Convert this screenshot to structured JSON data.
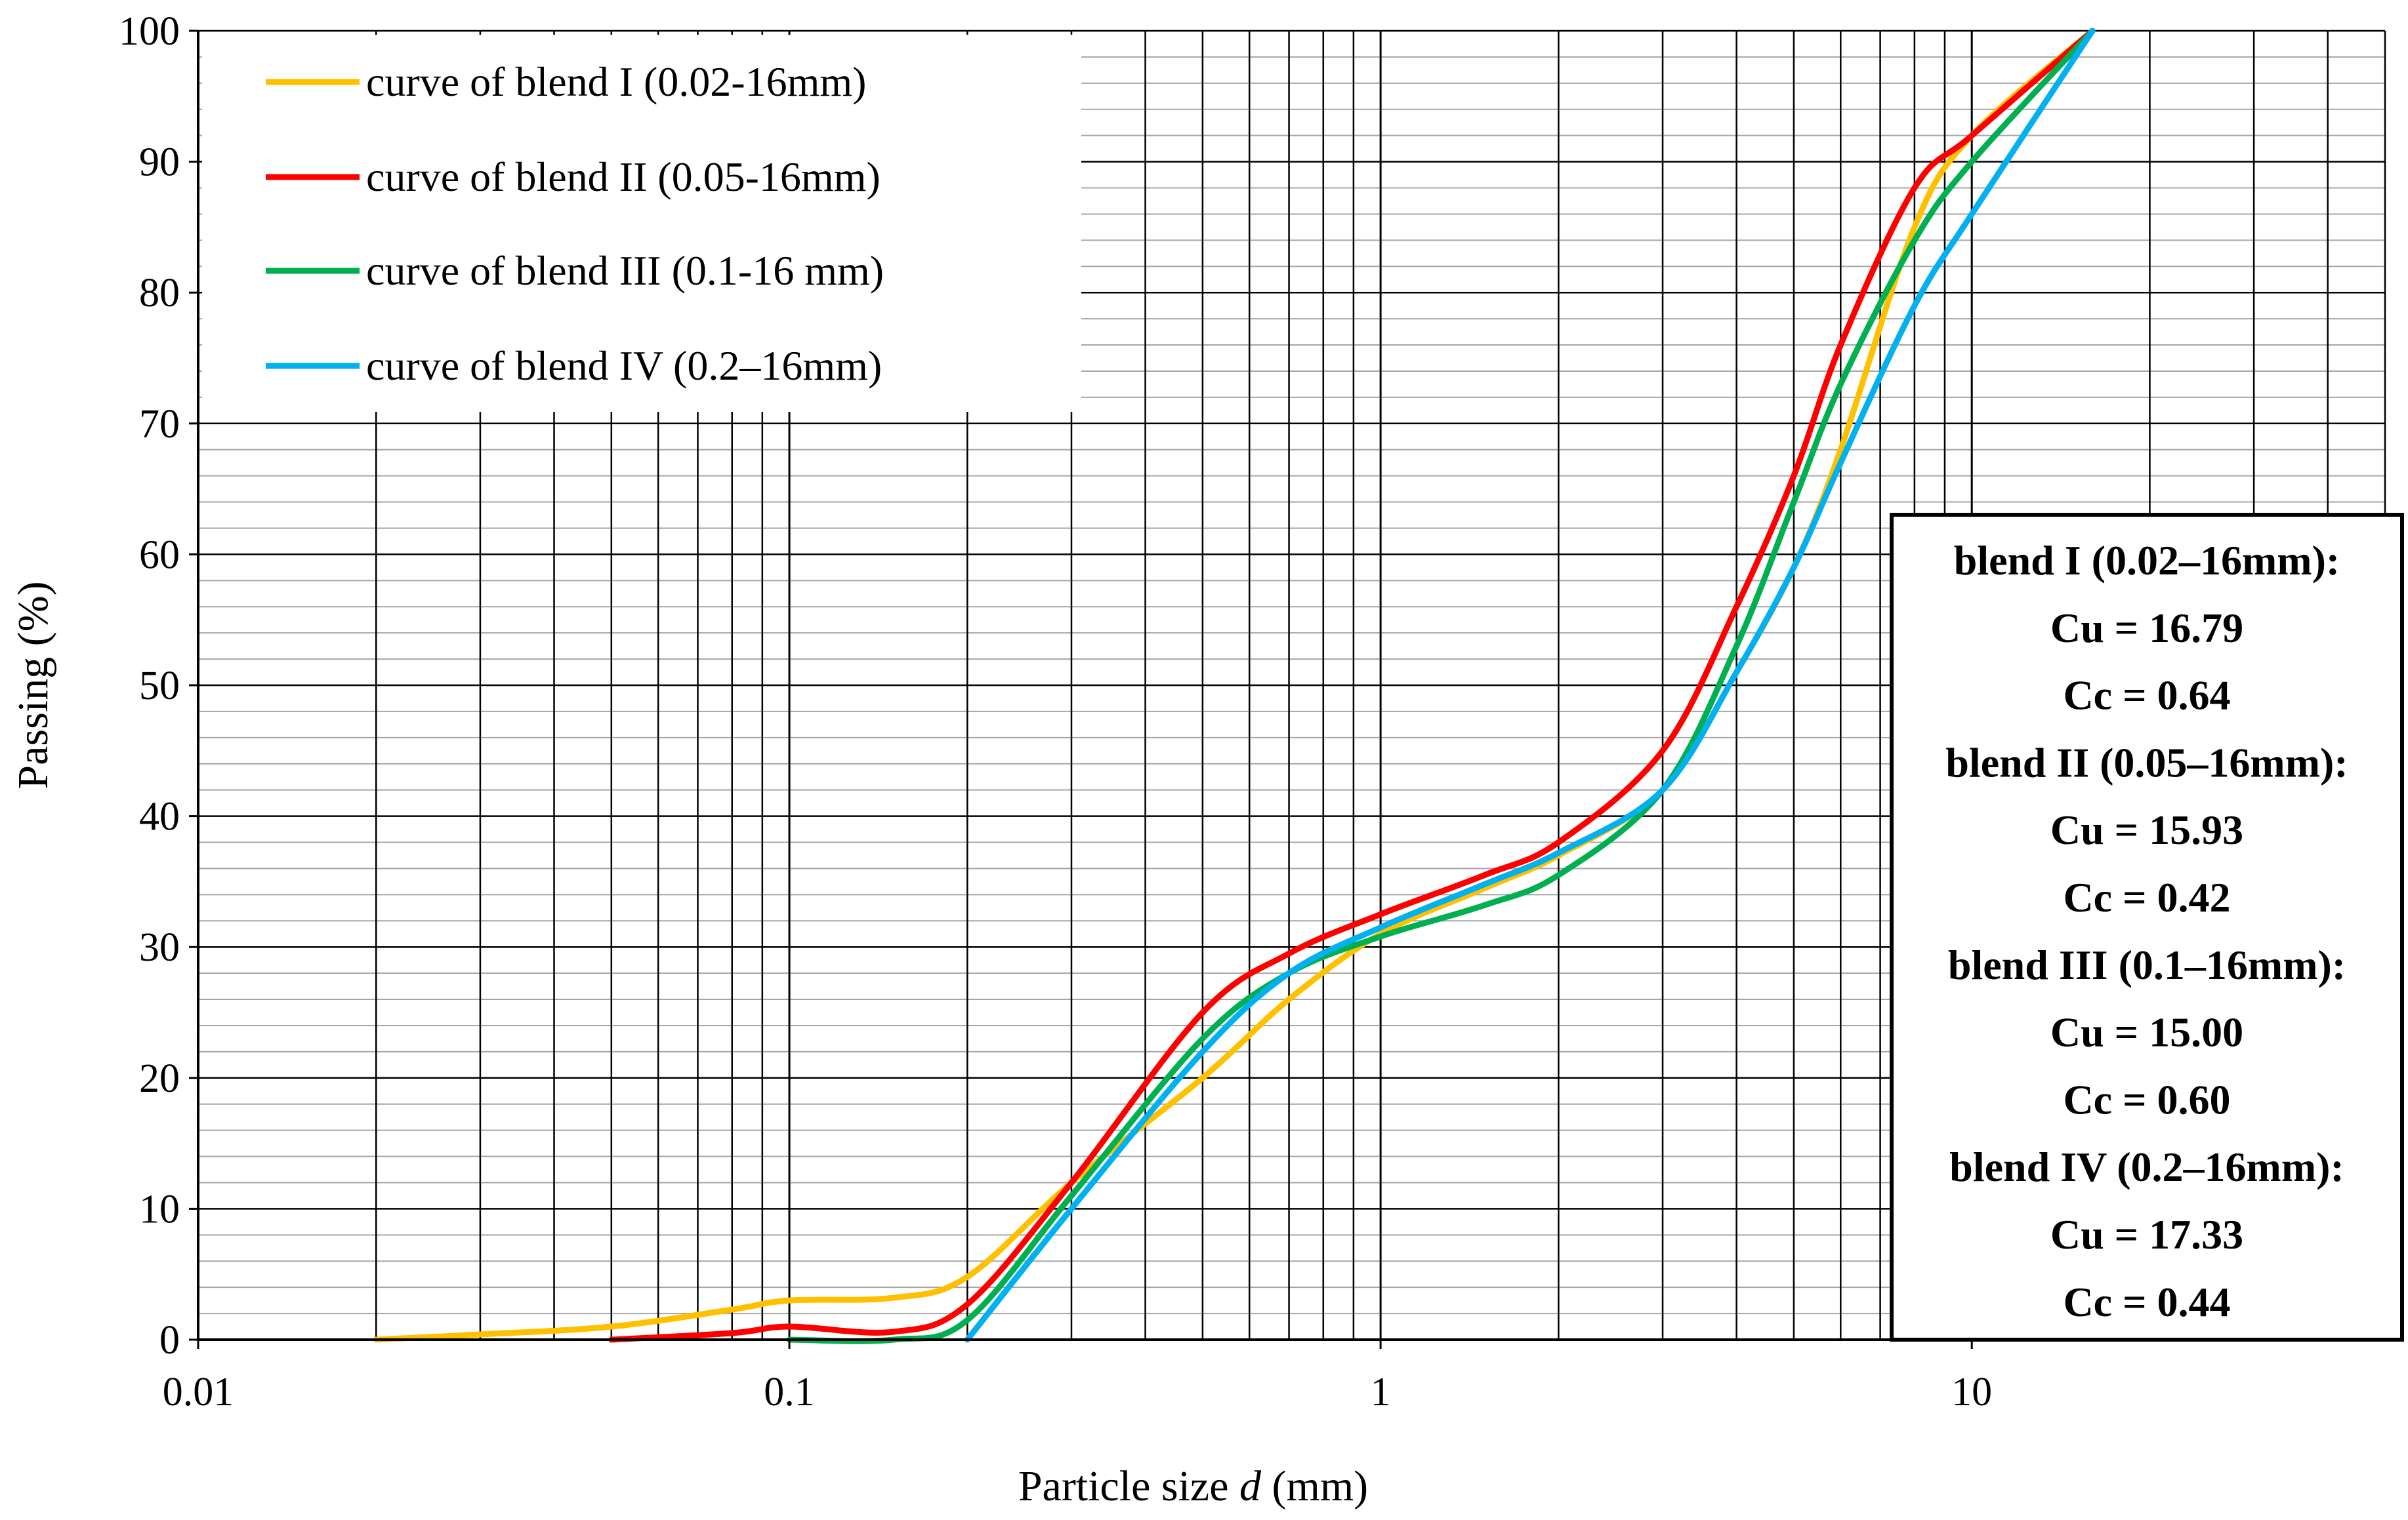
{
  "chart_data": {
    "type": "line",
    "x_scale": "log",
    "xlim": [
      0.01,
      50
    ],
    "ylim": [
      0,
      100
    ],
    "xlabel_prefix": "Particle size ",
    "xlabel_var": "d",
    "xlabel_suffix": " (mm)",
    "ylabel": "Passing (%)",
    "x_ticks": [
      {
        "value": 0.01,
        "label": "0.01"
      },
      {
        "value": 0.1,
        "label": "0.1"
      },
      {
        "value": 1,
        "label": "1"
      },
      {
        "value": 10,
        "label": "10"
      }
    ],
    "y_ticks": [
      {
        "value": 0,
        "label": "0"
      },
      {
        "value": 10,
        "label": "10"
      },
      {
        "value": 20,
        "label": "20"
      },
      {
        "value": 30,
        "label": "30"
      },
      {
        "value": 40,
        "label": "40"
      },
      {
        "value": 50,
        "label": "50"
      },
      {
        "value": 60,
        "label": "60"
      },
      {
        "value": 70,
        "label": "70"
      },
      {
        "value": 80,
        "label": "80"
      },
      {
        "value": 90,
        "label": "90"
      },
      {
        "value": 100,
        "label": "100"
      }
    ],
    "grid": true,
    "legend_position": "top-left",
    "series": [
      {
        "name": "curve of blend I (0.02-16mm)",
        "color": "#FFC000",
        "points": [
          [
            0.02,
            0
          ],
          [
            0.03,
            0.4
          ],
          [
            0.05,
            1.0
          ],
          [
            0.08,
            2.3
          ],
          [
            0.1,
            3.0
          ],
          [
            0.15,
            3.2
          ],
          [
            0.2,
            4.8
          ],
          [
            0.3,
            12
          ],
          [
            0.5,
            20
          ],
          [
            0.7,
            26
          ],
          [
            1,
            31
          ],
          [
            1.5,
            34.5
          ],
          [
            2,
            37
          ],
          [
            3,
            42
          ],
          [
            4,
            51
          ],
          [
            5,
            59
          ],
          [
            6,
            68
          ],
          [
            8,
            85
          ],
          [
            10,
            92
          ],
          [
            16,
            100
          ]
        ]
      },
      {
        "name": "curve of blend II (0.05-16mm)",
        "color": "#FF0000",
        "points": [
          [
            0.05,
            0
          ],
          [
            0.08,
            0.5
          ],
          [
            0.1,
            1.0
          ],
          [
            0.15,
            0.6
          ],
          [
            0.2,
            2.7
          ],
          [
            0.3,
            12
          ],
          [
            0.5,
            25
          ],
          [
            0.7,
            29.5
          ],
          [
            1,
            32.5
          ],
          [
            1.5,
            35.5
          ],
          [
            2,
            38
          ],
          [
            3,
            45
          ],
          [
            4,
            56
          ],
          [
            5,
            66
          ],
          [
            6,
            76
          ],
          [
            8,
            88
          ],
          [
            10,
            92
          ],
          [
            16,
            100
          ]
        ]
      },
      {
        "name": "curve of blend III (0.1-16 mm)",
        "color": "#00B050",
        "points": [
          [
            0.1,
            0
          ],
          [
            0.15,
            0
          ],
          [
            0.2,
            1.5
          ],
          [
            0.3,
            11
          ],
          [
            0.5,
            23
          ],
          [
            0.7,
            28
          ],
          [
            1,
            30.8
          ],
          [
            1.5,
            33.2
          ],
          [
            2,
            35.5
          ],
          [
            3,
            42
          ],
          [
            4,
            53
          ],
          [
            5,
            64
          ],
          [
            6,
            73
          ],
          [
            8,
            84
          ],
          [
            10,
            90
          ],
          [
            16,
            100
          ]
        ]
      },
      {
        "name": "curve of blend IV (0.2–16mm)",
        "color": "#00B0F0",
        "points": [
          [
            0.2,
            0
          ],
          [
            0.3,
            10
          ],
          [
            0.5,
            22
          ],
          [
            0.7,
            28
          ],
          [
            1,
            31.5
          ],
          [
            1.5,
            34.8
          ],
          [
            2,
            37.2
          ],
          [
            3,
            42
          ],
          [
            4,
            51
          ],
          [
            5,
            59
          ],
          [
            6,
            67
          ],
          [
            8,
            79
          ],
          [
            10,
            86
          ],
          [
            16,
            100
          ]
        ]
      }
    ]
  },
  "stats_box": {
    "lines": [
      "blend I (0.02–16mm):",
      "Cu = 16.79",
      "Cc = 0.64",
      "blend II (0.05–16mm):",
      "Cu = 15.93",
      "Cc = 0.42",
      "blend III (0.1–16mm):",
      "Cu = 15.00",
      "Cc = 0.60",
      "blend IV (0.2–16mm):",
      "Cu = 17.33",
      "Cc = 0.44"
    ]
  }
}
